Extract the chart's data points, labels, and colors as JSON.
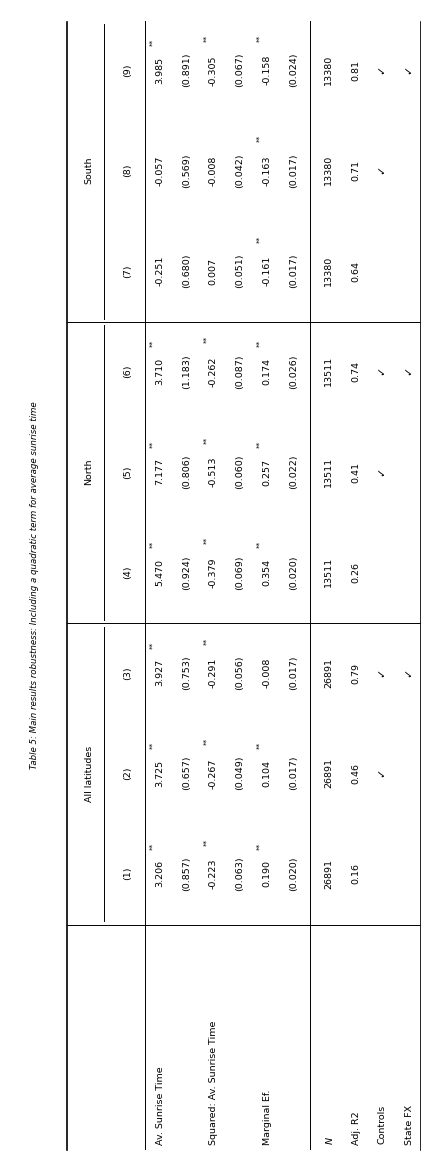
{
  "title": "Table 5: Main results robustness: Including a quadratic term for average sunrise time",
  "col_groups": [
    {
      "label": "All latitudes",
      "start": 0,
      "end": 2
    },
    {
      "label": "North",
      "start": 3,
      "end": 5
    },
    {
      "label": "South",
      "start": 6,
      "end": 8
    }
  ],
  "col_headers": [
    "(1)",
    "(2)",
    "(3)",
    "(4)",
    "(5)",
    "(6)",
    "(7)",
    "(8)",
    "(9)"
  ],
  "row_label_names": [
    "Av. Sunrise Time",
    "",
    "Squared: Av. Sunrise Time",
    "",
    "Marginal Ef.",
    "",
    "N",
    "Adj. R2",
    "Controls",
    "State FX"
  ],
  "data": [
    [
      "3.206**",
      "3.725**",
      "3.927**",
      "5.470**",
      "7.177**",
      "3.710**",
      "-0.251",
      "-0.057",
      "3.985**"
    ],
    [
      "(0.857)",
      "(0.657)",
      "(0.753)",
      "(0.924)",
      "(0.806)",
      "(1.183)",
      "(0.680)",
      "(0.569)",
      "(0.891)"
    ],
    [
      "-0.223**",
      "-0.267**",
      "-0.291**",
      "-0.379**",
      "-0.513**",
      "-0.262**",
      "0.007",
      "-0.008",
      "-0.305**"
    ],
    [
      "(0.063)",
      "(0.049)",
      "(0.056)",
      "(0.069)",
      "(0.060)",
      "(0.087)",
      "(0.051)",
      "(0.042)",
      "(0.067)"
    ],
    [
      "0.190**",
      "0.104**",
      "-0.008",
      "0.354**",
      "0.257**",
      "0.174**",
      "-0.161**",
      "-0.163**",
      "-0.158**"
    ],
    [
      "(0.020)",
      "(0.017)",
      "(0.017)",
      "(0.020)",
      "(0.022)",
      "(0.026)",
      "(0.017)",
      "(0.017)",
      "(0.024)"
    ],
    [
      "26891",
      "26891",
      "26891",
      "13511",
      "13511",
      "13511",
      "13380",
      "13380",
      "13380"
    ],
    [
      "0.16",
      "0.46",
      "0.79",
      "0.26",
      "0.41",
      "0.74",
      "0.64",
      "0.71",
      "0.81"
    ],
    [
      "",
      "check",
      "check",
      "",
      "check",
      "check",
      "",
      "check",
      "check"
    ],
    [
      "",
      "",
      "check",
      "",
      "",
      "check",
      "",
      "",
      "check"
    ]
  ],
  "checkmark_rows": [
    8,
    9
  ],
  "n_data_cols": 9,
  "fontsize_title": 6.2,
  "fontsize_data": 6.8,
  "fontsize_super": 5.2,
  "fontsize_check": 8.0
}
